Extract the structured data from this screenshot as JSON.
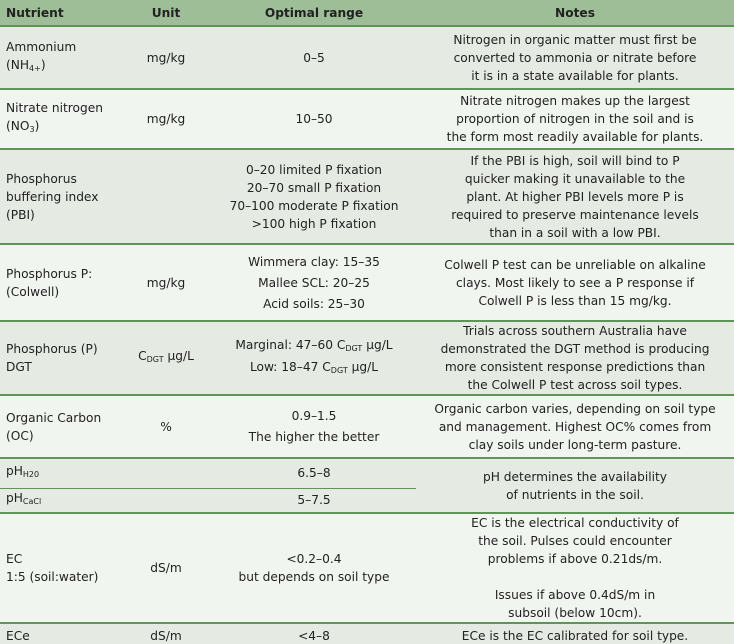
{
  "headers": [
    "Nutrient",
    "Unit",
    "Optimal range",
    "Notes"
  ],
  "colors": {
    "header_bg": "#9dbe97",
    "row_dark": "#e5ebe2",
    "row_light": "#f1f5ef",
    "rule": "#5f9459"
  },
  "rows": [
    {
      "nutrient": [
        "Ammonium",
        [
          [
            "(NH"
          ],
          [
            "4+",
            1
          ],
          [
            ")"
          ]
        ]
      ],
      "unit": [
        "mg/kg"
      ],
      "range": [
        "0–5"
      ],
      "notes": [
        "Nitrogen in organic matter must first be",
        "converted to ammonia or nitrate before",
        "it is in a state available for plants."
      ]
    },
    {
      "nutrient": [
        "Nitrate nitrogen",
        [
          [
            "(NO"
          ],
          [
            "3",
            1
          ],
          [
            ")"
          ]
        ]
      ],
      "unit": [
        "mg/kg"
      ],
      "range": [
        "10–50"
      ],
      "notes": [
        "Nitrate nitrogen makes up the largest",
        "proportion of nitrogen in the soil and is",
        "the form most readily available for plants."
      ]
    },
    {
      "nutrient": [
        "Phosphorus",
        "buffering index",
        "(PBI)"
      ],
      "unit": [],
      "range": [
        "0–20 limited P fixation",
        "20–70 small P fixation",
        "70–100 moderate P fixation",
        ">100 high P fixation"
      ],
      "notes": [
        "If the PBI is high, soil will bind to P",
        "quicker making it unavailable to the",
        "plant. At higher PBI levels more P is",
        "required to preserve maintenance levels",
        "than in a soil with a low PBI."
      ]
    },
    {
      "nutrient": [
        "Phosphorus P:",
        "(Colwell)"
      ],
      "unit": [
        "mg/kg"
      ],
      "range": [
        "Wimmera clay: 15–35",
        "Mallee SCL: 20–25",
        "Acid soils: 25–30"
      ],
      "spaced": true,
      "notes": [
        "Colwell P test can be unreliable on alkaline",
        "clays. Most likely to see a P response if",
        "Colwell P is less than 15 mg/kg."
      ]
    },
    {
      "nutrient": [
        "Phosphorus (P)",
        "DGT"
      ],
      "unit": [
        [
          [
            "C"
          ],
          [
            "DGT",
            1
          ],
          [
            " µg/L"
          ]
        ]
      ],
      "range": [
        [
          [
            "Marginal: 47–60 C"
          ],
          [
            "DGT",
            1
          ],
          [
            " µg/L"
          ]
        ],
        [
          [
            "Low: 18–47 C"
          ],
          [
            "DGT",
            1
          ],
          [
            " µg/L"
          ]
        ]
      ],
      "notes": [
        "Trials across southern Australia have",
        "demonstrated the DGT method is producing",
        "more consistent response predictions than",
        "the Colwell P test across soil types."
      ]
    },
    {
      "nutrient": [
        "Organic Carbon",
        "(OC)"
      ],
      "unit": [
        "%"
      ],
      "range": [
        "0.9–1.5",
        "The higher the better"
      ],
      "spaced": true,
      "notes": [
        "Organic carbon varies, depending on soil type",
        "and management. Highest OC% comes from",
        "clay soils under long-term pasture."
      ]
    },
    {
      "nutrient": [
        [
          [
            "pH"
          ],
          [
            "H20",
            1
          ]
        ]
      ],
      "unit": [],
      "range": [
        "6.5–8"
      ],
      "notes": [
        "pH determines the availability",
        "of nutrients in the soil."
      ],
      "notes_rowspan": 2
    },
    {
      "nutrient": [
        [
          [
            "pH"
          ],
          [
            "CaCl",
            1
          ]
        ]
      ],
      "unit": [],
      "range": [
        "5–7.5"
      ],
      "notes_merged": true
    },
    {
      "nutrient": [
        "EC",
        "1:5 (soil:water)"
      ],
      "unit": [
        "dS/m"
      ],
      "range": [
        "<0.2–0.4",
        "but depends on soil type"
      ],
      "notes": [
        "EC is the electrical conductivity of",
        "the soil. Pulses could encounter",
        "problems if above 0.21ds/m.",
        "",
        "Issues if above 0.4dS/m in",
        "subsoil (below 10cm)."
      ]
    },
    {
      "nutrient": [
        "ECe"
      ],
      "unit": [
        "dS/m"
      ],
      "range": [
        "<4–8"
      ],
      "notes": [
        "ECe is the EC calibrated for soil type."
      ]
    }
  ]
}
